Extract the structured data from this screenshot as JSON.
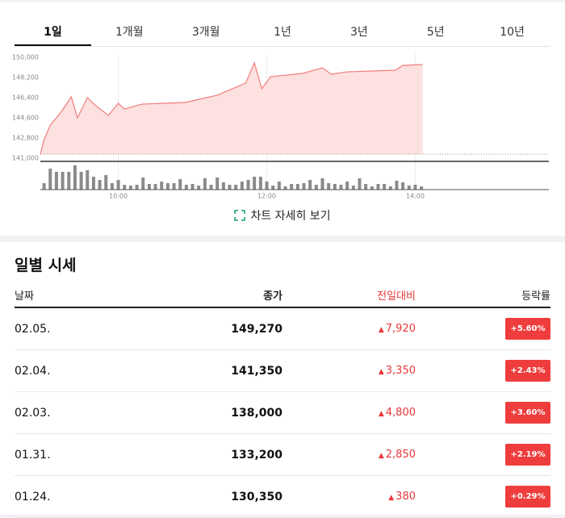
{
  "tabs": [
    "1일",
    "1개월",
    "3개월",
    "1년",
    "3년",
    "5년",
    "10년"
  ],
  "chart_data": {
    "type": "line",
    "x": [
      537,
      540,
      545,
      550,
      555,
      562,
      567,
      575,
      581,
      592,
      600,
      605,
      619,
      654,
      680,
      703,
      710,
      716,
      723,
      749,
      765,
      772,
      785,
      824,
      830,
      846
    ],
    "series": [
      {
        "color": "#f07c7c",
        "values": [
          141360,
          142650,
          143950,
          144600,
          145320,
          146470,
          144600,
          146400,
          145750,
          144820,
          145900,
          145390,
          145820,
          145970,
          146620,
          147700,
          149500,
          147200,
          148270,
          148560,
          149060,
          148490,
          148700,
          148850,
          149280,
          149350
        ]
      }
    ],
    "prev_close": 141350,
    "xlim": [
      537,
      948
    ],
    "xticks": [
      {
        "value": 600,
        "label": "10:00"
      },
      {
        "value": 720,
        "label": "12:00"
      },
      {
        "value": 840,
        "label": "14:00"
      }
    ],
    "ylim": [
      141000,
      150000
    ],
    "yticks": [
      {
        "value": 141000,
        "label": "141,000"
      },
      {
        "value": 142800,
        "label": "142,800"
      },
      {
        "value": 144600,
        "label": "144,600"
      },
      {
        "value": 146400,
        "label": "146,400"
      },
      {
        "value": 148200,
        "label": "148,200"
      },
      {
        "value": 150000,
        "label": "150,000"
      }
    ],
    "volume": {
      "type": "bar",
      "color": "#8a8a8a",
      "ylim": [
        0,
        32
      ],
      "x": [
        540,
        545,
        550,
        555,
        560,
        565,
        570,
        575,
        580,
        585,
        590,
        595,
        600,
        605,
        610,
        615,
        620,
        625,
        630,
        635,
        640,
        645,
        650,
        655,
        660,
        665,
        670,
        675,
        680,
        685,
        690,
        695,
        700,
        705,
        710,
        715,
        720,
        725,
        730,
        735,
        740,
        745,
        750,
        755,
        760,
        765,
        770,
        775,
        780,
        785,
        790,
        795,
        800,
        805,
        810,
        815,
        820,
        825,
        830,
        835,
        840,
        845
      ],
      "values": [
        8,
        26,
        22,
        22,
        22,
        30,
        22,
        24,
        16,
        12,
        18,
        8,
        12,
        6,
        5,
        6,
        15,
        7,
        7,
        10,
        8,
        8,
        13,
        6,
        7,
        5,
        14,
        6,
        15,
        9,
        6,
        6,
        10,
        12,
        16,
        16,
        10,
        5,
        10,
        4,
        7,
        7,
        8,
        12,
        6,
        14,
        8,
        7,
        6,
        10,
        5,
        14,
        7,
        4,
        7,
        7,
        4,
        11,
        9,
        5,
        6,
        4
      ]
    }
  },
  "detail_link": "차트 자세히 보기",
  "section_title": "일별 시세",
  "table": {
    "headers": [
      "날짜",
      "종가",
      "전일대비",
      "등락률"
    ],
    "rows": [
      [
        "02.05.",
        "149,270",
        "7,920",
        "+5.60%"
      ],
      [
        "02.04.",
        "141,350",
        "3,350",
        "+2.43%"
      ],
      [
        "02.03.",
        "138,000",
        "4,800",
        "+3.60%"
      ],
      [
        "01.31.",
        "133,200",
        "2,850",
        "+2.19%"
      ],
      [
        "01.24.",
        "130,350",
        "380",
        "+0.29%"
      ]
    ]
  }
}
